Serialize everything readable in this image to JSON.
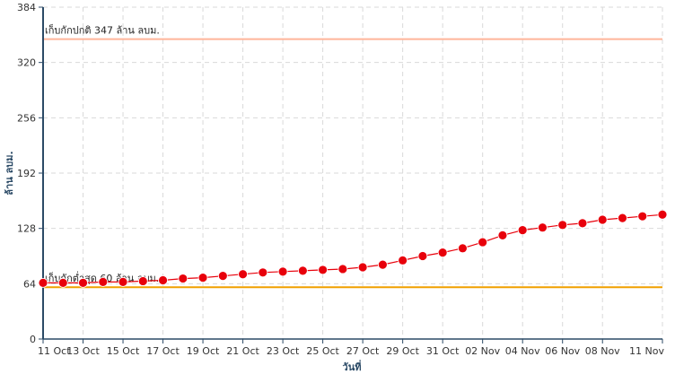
{
  "chart_data": {
    "type": "line",
    "title": "",
    "xlabel": "วันที่",
    "ylabel": "ล้าน ลบม.",
    "ylim": [
      0,
      384
    ],
    "yticks": [
      0,
      64,
      128,
      192,
      256,
      320,
      384
    ],
    "grid": true,
    "x": [
      "11 Oct",
      "12 Oct",
      "13 Oct",
      "14 Oct",
      "15 Oct",
      "16 Oct",
      "17 Oct",
      "18 Oct",
      "19 Oct",
      "20 Oct",
      "21 Oct",
      "22 Oct",
      "23 Oct",
      "24 Oct",
      "25 Oct",
      "26 Oct",
      "27 Oct",
      "28 Oct",
      "29 Oct",
      "30 Oct",
      "31 Oct",
      "01 Nov",
      "02 Nov",
      "03 Nov",
      "04 Nov",
      "05 Nov",
      "06 Nov",
      "07 Nov",
      "08 Nov",
      "09 Nov",
      "10 Nov",
      "11 Nov"
    ],
    "xtick_labels": [
      "11 Oct",
      "13 Oct",
      "15 Oct",
      "17 Oct",
      "19 Oct",
      "21 Oct",
      "23 Oct",
      "25 Oct",
      "27 Oct",
      "29 Oct",
      "31 Oct",
      "02 Nov",
      "04 Nov",
      "06 Nov",
      "08 Nov",
      "11 Nov"
    ],
    "series": [
      {
        "color": "#e8000b",
        "values": [
          65,
          65,
          65,
          66,
          66,
          67,
          68,
          70,
          71,
          73,
          75,
          77,
          78,
          79,
          80,
          81,
          83,
          86,
          91,
          96,
          100,
          105,
          112,
          120,
          126,
          129,
          132,
          134,
          138,
          140,
          142,
          144
        ]
      }
    ],
    "reference_lines": [
      {
        "label": "เก็บกักปกติ 347 ล้าน ลบม.",
        "value": 347,
        "color": "#ffb59a"
      },
      {
        "label": "เก็บกักต่ำสุด 60 ล้าน ลบม.",
        "value": 60,
        "color": "#f0a000"
      }
    ]
  }
}
